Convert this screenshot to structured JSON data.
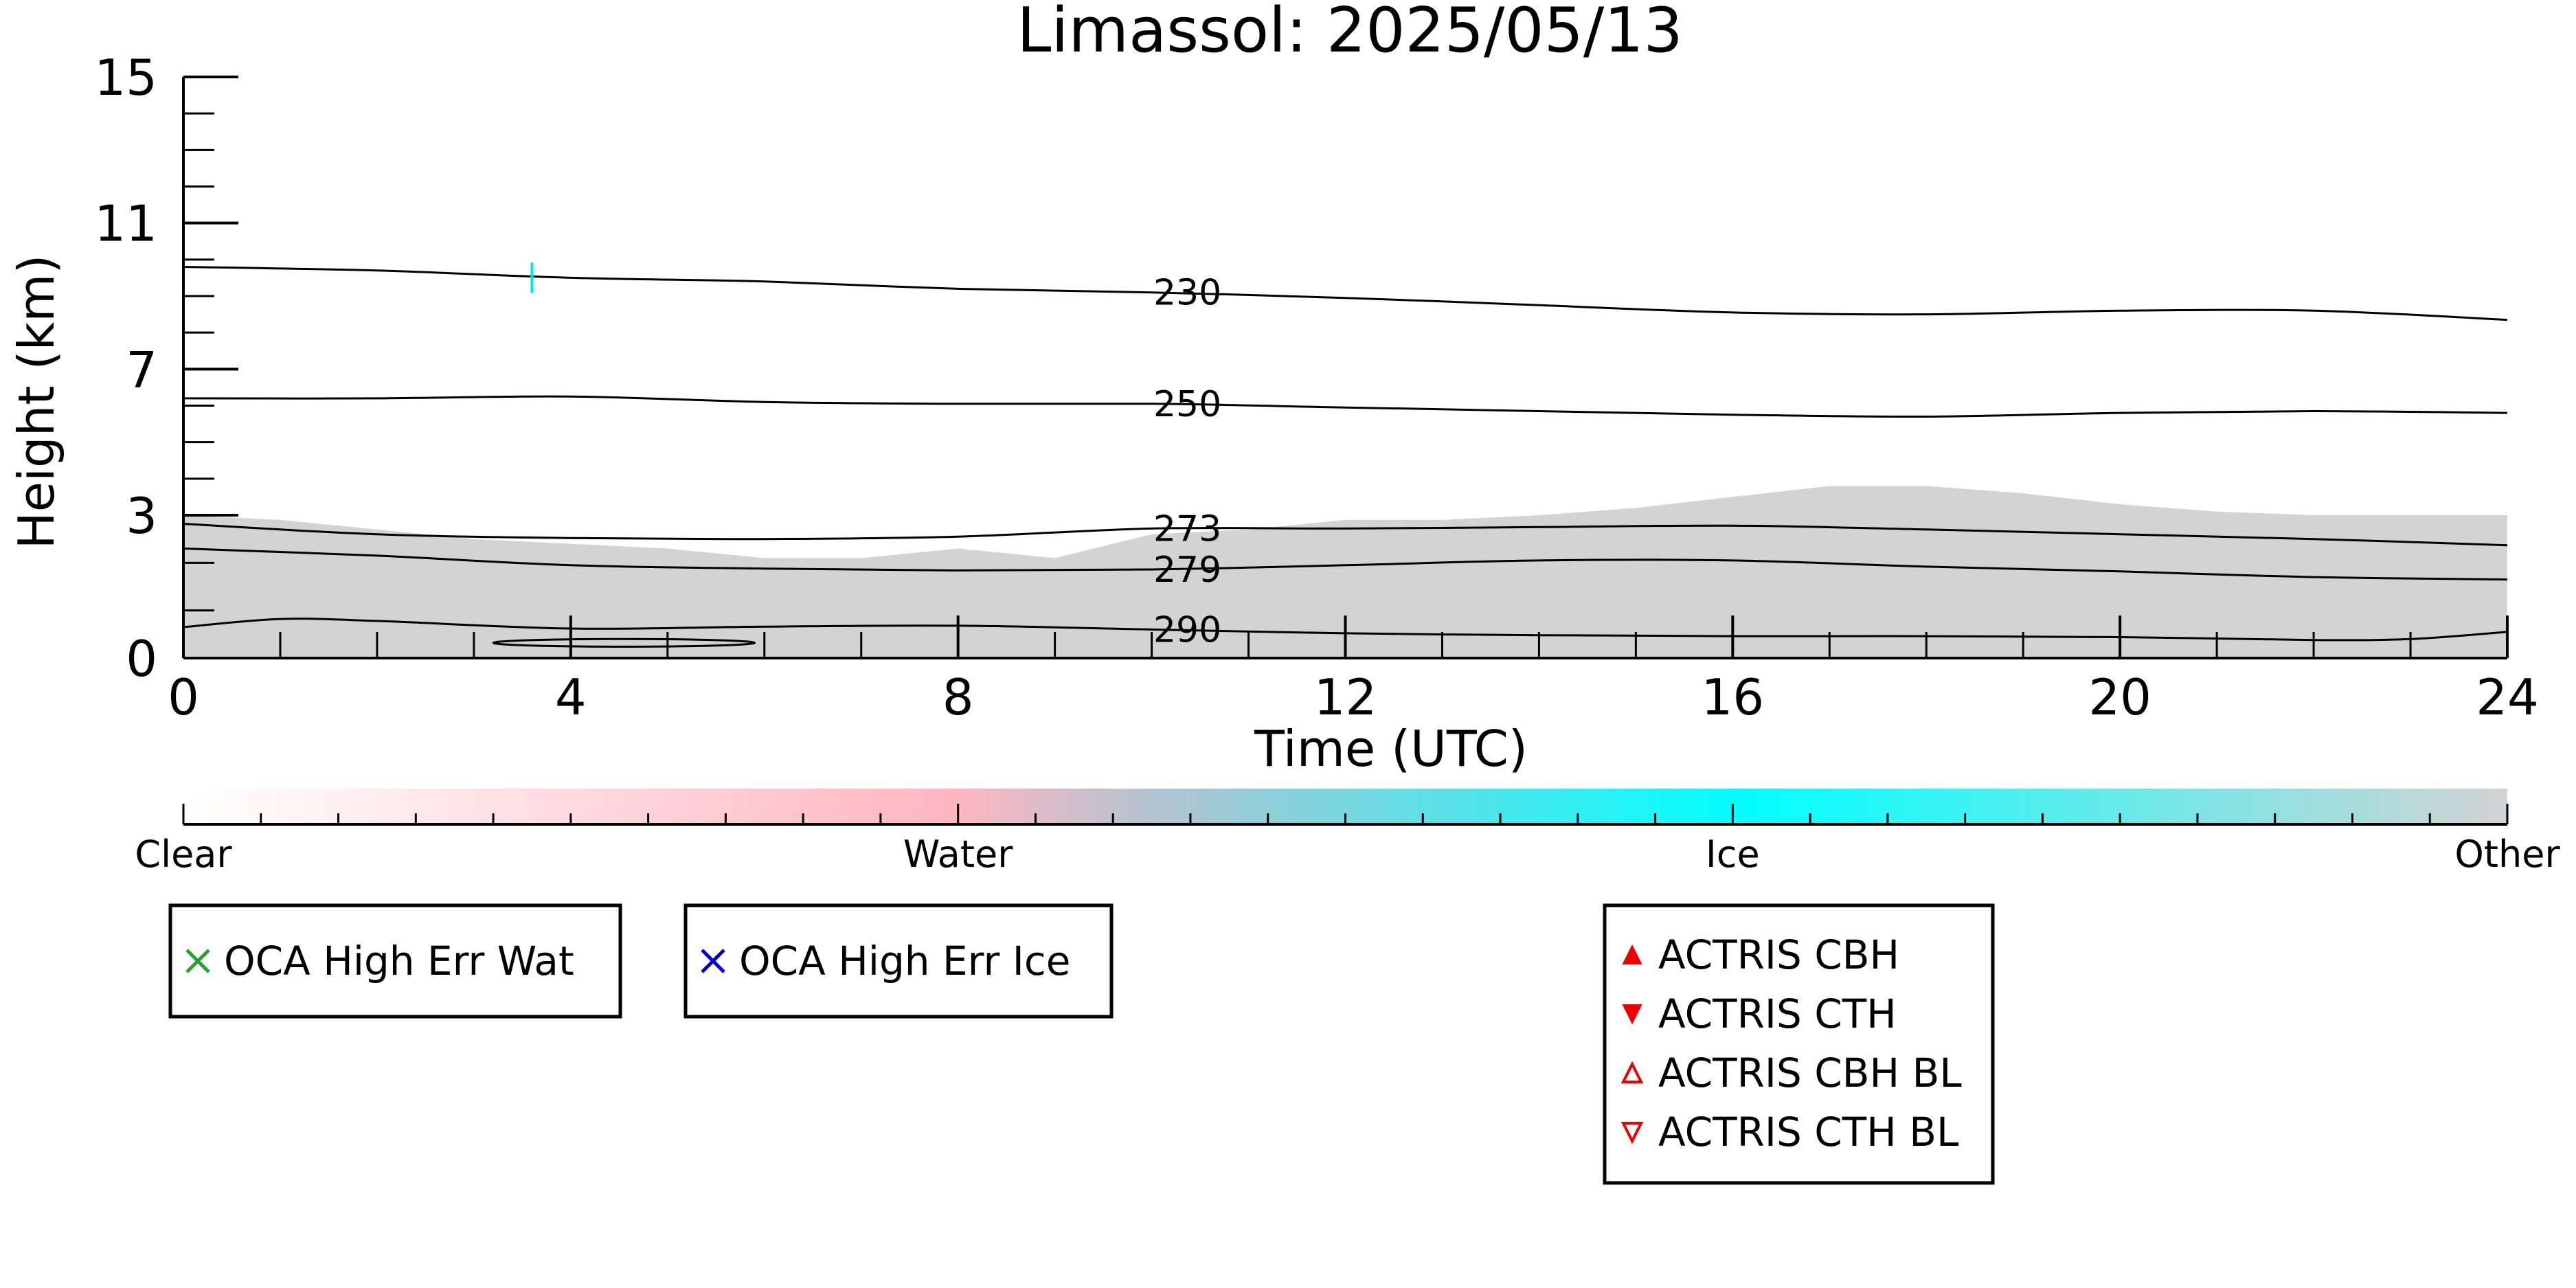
{
  "chart_data": {
    "type": "heatmap",
    "title": "Limassol: 2025/05/13",
    "xlabel": "Time (UTC)",
    "ylabel": "Height (km)",
    "xlim": [
      0,
      24
    ],
    "ylim": [
      0,
      15
    ],
    "x_ticks": [
      0,
      4,
      8,
      12,
      16,
      20,
      24
    ],
    "y_ticks": [
      0,
      3,
      7,
      11,
      15
    ],
    "y_scale": "piecewise: 0-3 km expanded, 3-15 km compressed",
    "grid": false,
    "cloud_mask": {
      "class": "Other",
      "color": "#d3d3d3",
      "top_km": [
        [
          0,
          3.0
        ],
        [
          1,
          2.9
        ],
        [
          2,
          2.7
        ],
        [
          3,
          2.5
        ],
        [
          4,
          2.4
        ],
        [
          5,
          2.3
        ],
        [
          6,
          2.1
        ],
        [
          7,
          2.1
        ],
        [
          8,
          2.3
        ],
        [
          9,
          2.1
        ],
        [
          10,
          2.6
        ],
        [
          11,
          2.7
        ],
        [
          12,
          2.9
        ],
        [
          13,
          2.9
        ],
        [
          14,
          3.0
        ],
        [
          15,
          3.2
        ],
        [
          16,
          3.5
        ],
        [
          17,
          3.8
        ],
        [
          18,
          3.8
        ],
        [
          19,
          3.6
        ],
        [
          20,
          3.3
        ],
        [
          21,
          3.1
        ],
        [
          22,
          3.0
        ],
        [
          23,
          3.0
        ],
        [
          24,
          3.0
        ]
      ]
    },
    "contours": [
      {
        "label": "230",
        "label_x": 10.0,
        "points": [
          [
            0,
            9.8
          ],
          [
            2,
            9.7
          ],
          [
            4,
            9.5
          ],
          [
            6,
            9.4
          ],
          [
            8,
            9.2
          ],
          [
            10,
            9.1
          ],
          [
            12,
            8.95
          ],
          [
            14,
            8.75
          ],
          [
            16,
            8.55
          ],
          [
            18,
            8.5
          ],
          [
            20,
            8.6
          ],
          [
            22,
            8.6
          ],
          [
            24,
            8.35
          ]
        ]
      },
      {
        "label": "250",
        "label_x": 10.0,
        "points": [
          [
            0,
            6.2
          ],
          [
            2,
            6.2
          ],
          [
            4,
            6.25
          ],
          [
            6,
            6.1
          ],
          [
            8,
            6.05
          ],
          [
            10,
            6.05
          ],
          [
            12,
            5.95
          ],
          [
            14,
            5.85
          ],
          [
            16,
            5.75
          ],
          [
            18,
            5.7
          ],
          [
            20,
            5.8
          ],
          [
            22,
            5.85
          ],
          [
            24,
            5.8
          ]
        ]
      },
      {
        "label": "273",
        "label_x": 10.0,
        "points": [
          [
            0,
            2.82
          ],
          [
            2,
            2.6
          ],
          [
            4,
            2.52
          ],
          [
            6,
            2.5
          ],
          [
            8,
            2.55
          ],
          [
            10,
            2.72
          ],
          [
            12,
            2.72
          ],
          [
            14,
            2.75
          ],
          [
            16,
            2.78
          ],
          [
            18,
            2.7
          ],
          [
            20,
            2.6
          ],
          [
            22,
            2.5
          ],
          [
            24,
            2.37
          ]
        ]
      },
      {
        "label": "279",
        "label_x": 10.0,
        "points": [
          [
            0,
            2.3
          ],
          [
            2,
            2.15
          ],
          [
            4,
            1.95
          ],
          [
            6,
            1.88
          ],
          [
            8,
            1.84
          ],
          [
            10,
            1.86
          ],
          [
            12,
            1.95
          ],
          [
            14,
            2.05
          ],
          [
            16,
            2.05
          ],
          [
            18,
            1.92
          ],
          [
            20,
            1.82
          ],
          [
            22,
            1.7
          ],
          [
            24,
            1.65
          ]
        ]
      },
      {
        "label": "290",
        "label_x": 10.0,
        "points": [
          [
            0,
            0.65
          ],
          [
            1,
            0.82
          ],
          [
            2,
            0.78
          ],
          [
            4,
            0.62
          ],
          [
            6,
            0.66
          ],
          [
            8,
            0.68
          ],
          [
            10,
            0.6
          ],
          [
            12,
            0.52
          ],
          [
            14,
            0.48
          ],
          [
            16,
            0.46
          ],
          [
            18,
            0.46
          ],
          [
            20,
            0.44
          ],
          [
            22,
            0.38
          ],
          [
            23,
            0.4
          ],
          [
            24,
            0.55
          ]
        ]
      }
    ],
    "contour_loop": {
      "label": "290",
      "x_range": [
        3.2,
        5.9
      ],
      "center_km": 0.32,
      "half_height_km": 0.08
    },
    "ice_marks": [
      {
        "x": 3.6,
        "y": 9.5
      }
    ],
    "colorbar": {
      "labels": [
        "Clear",
        "Water",
        "Ice",
        "Other"
      ],
      "stops": [
        {
          "pos": 0.0,
          "color": "#ffffff"
        },
        {
          "pos": 0.33,
          "color": "#ffb6c1"
        },
        {
          "pos": 0.42,
          "color": "#b0c4d0"
        },
        {
          "pos": 0.67,
          "color": "#00ffff"
        },
        {
          "pos": 1.0,
          "color": "#d3d3d3"
        }
      ]
    },
    "legends": [
      {
        "entries": [
          {
            "marker": "x",
            "color": "#2ca02c",
            "label": "OCA High Err Wat"
          }
        ]
      },
      {
        "entries": [
          {
            "marker": "x",
            "color": "#0000cc",
            "label": "OCA High Err Ice"
          }
        ]
      },
      {
        "entries": [
          {
            "marker": "triangle-up-filled",
            "color": "#ee0000",
            "label": "ACTRIS CBH"
          },
          {
            "marker": "triangle-down-filled",
            "color": "#ee0000",
            "label": "ACTRIS CTH"
          },
          {
            "marker": "triangle-up-open",
            "color": "#ee0000",
            "label": "ACTRIS CBH BL"
          },
          {
            "marker": "triangle-down-open",
            "color": "#ee0000",
            "label": "ACTRIS CTH BL"
          }
        ]
      }
    ]
  }
}
